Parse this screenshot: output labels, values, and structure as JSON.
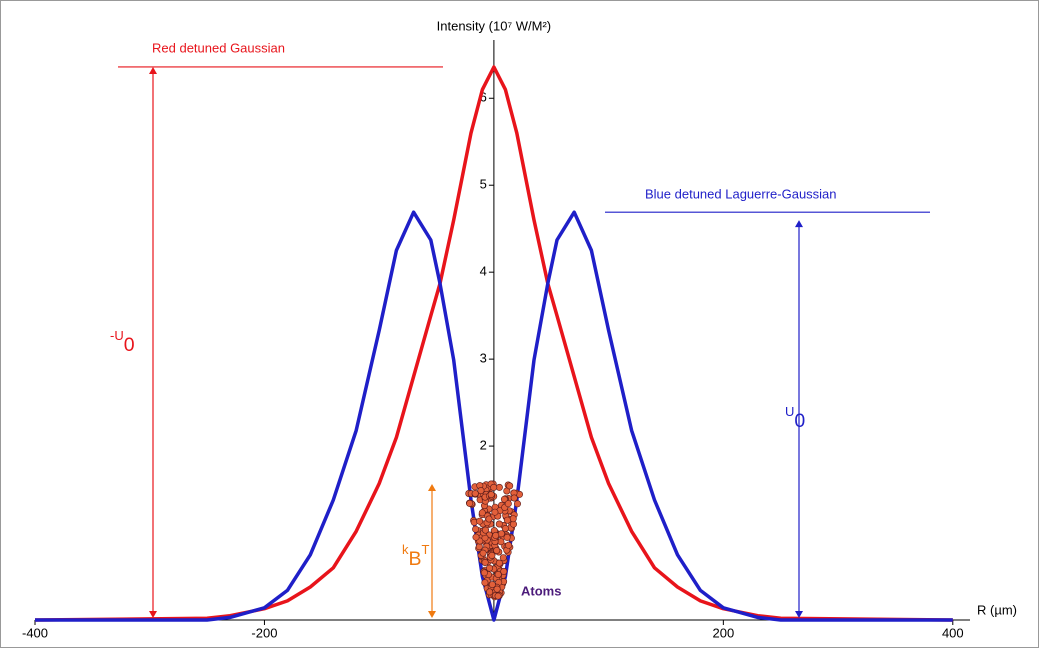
{
  "chart_data": {
    "type": "line",
    "ylabel": "Intensity (10⁷ W/M²)",
    "xlabel": "R (µm)",
    "x": [
      -400,
      -250,
      -230,
      -200,
      -180,
      -160,
      -140,
      -120,
      -100,
      -85,
      -70,
      -55,
      -47,
      -35,
      -20,
      -10,
      0,
      10,
      20,
      35,
      47,
      55,
      70,
      85,
      100,
      120,
      140,
      160,
      180,
      200,
      230,
      250,
      400
    ],
    "series": [
      {
        "name": "Red detuned Gaussian",
        "color": "#e8141b",
        "values": [
          0,
          0.02,
          0.05,
          0.13,
          0.22,
          0.38,
          0.6,
          1.02,
          1.57,
          2.1,
          2.8,
          3.5,
          3.87,
          4.6,
          5.6,
          6.1,
          6.36,
          6.1,
          5.6,
          4.6,
          3.87,
          3.5,
          2.8,
          2.1,
          1.57,
          1.02,
          0.6,
          0.38,
          0.22,
          0.13,
          0.05,
          0.02,
          0
        ]
      },
      {
        "name": "Blue detuned Laguerre-Gaussian",
        "color": "#1f1fc8",
        "values": [
          0,
          0,
          0.03,
          0.14,
          0.34,
          0.75,
          1.38,
          2.18,
          3.33,
          4.25,
          4.69,
          4.37,
          3.87,
          2.99,
          1.38,
          0.5,
          0,
          0.5,
          1.38,
          2.99,
          3.87,
          4.37,
          4.69,
          4.25,
          3.33,
          2.18,
          1.38,
          0.75,
          0.34,
          0.14,
          0.03,
          0,
          0
        ]
      }
    ],
    "xlim": [
      -400,
      415
    ],
    "xticks": [
      -400,
      -200,
      200,
      400
    ],
    "ylim": [
      0,
      6.67
    ],
    "yticks": [
      2,
      3,
      4,
      5,
      6
    ],
    "annotations": {
      "red_depth": [
        "-U",
        "0"
      ],
      "blue_depth": [
        "U",
        "0"
      ],
      "thermal": [
        "k",
        "B",
        "T"
      ],
      "atoms": "Atoms"
    }
  }
}
